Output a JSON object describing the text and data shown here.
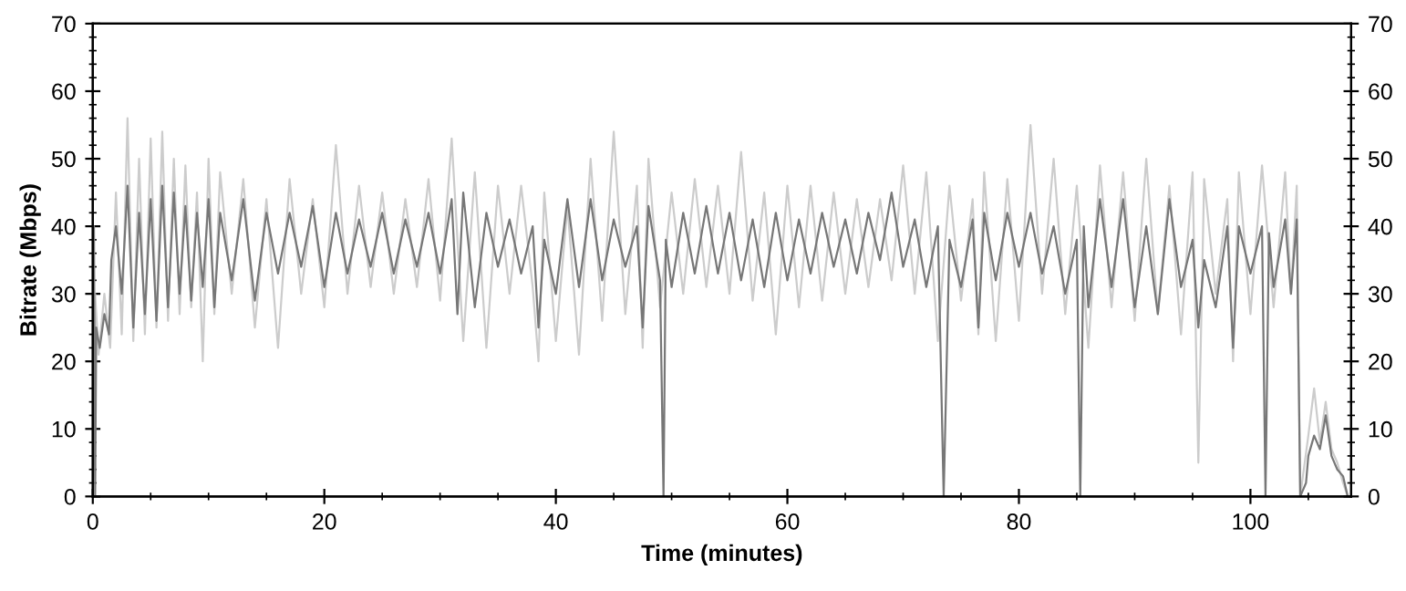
{
  "chart_data": {
    "type": "line",
    "xlabel": "Time (minutes)",
    "ylabel": "Bitrate (Mbps)",
    "xlim": [
      0,
      108.7
    ],
    "ylim": [
      0,
      70
    ],
    "xticks": [
      0,
      20,
      40,
      60,
      80,
      100
    ],
    "yticks": [
      0,
      10,
      20,
      30,
      40,
      50,
      60,
      70
    ],
    "y2lim": [
      0,
      70
    ],
    "y2ticks": [
      0,
      10,
      20,
      30,
      40,
      50,
      60,
      70
    ],
    "grid": false,
    "legend": false,
    "series": [
      {
        "color": "#cccccc",
        "x": [
          0,
          0.2,
          0.5,
          1,
          1.5,
          2,
          2.5,
          3,
          3.5,
          4,
          4.5,
          5,
          5.5,
          6,
          6.5,
          7,
          7.5,
          8,
          8.5,
          9,
          9.5,
          10,
          10.5,
          11,
          12,
          13,
          14,
          15,
          16,
          17,
          18,
          19,
          20,
          21,
          22,
          23,
          24,
          25,
          26,
          27,
          28,
          29,
          30,
          31,
          32,
          33,
          34,
          35,
          36,
          37,
          38,
          38.5,
          39,
          40,
          41,
          42,
          43,
          44,
          45,
          46,
          47,
          47.5,
          48,
          49,
          50,
          51,
          52,
          53,
          54,
          55,
          56,
          57,
          58,
          59,
          60,
          61,
          62,
          63,
          64,
          65,
          66,
          67,
          68,
          69,
          70,
          71,
          72,
          73,
          74,
          75,
          76,
          76.5,
          77,
          78,
          79,
          80,
          81,
          82,
          83,
          84,
          85,
          86,
          87,
          88,
          89,
          90,
          91,
          92,
          93,
          94,
          95,
          95.5,
          96,
          97,
          98,
          98.5,
          99,
          100,
          101,
          102,
          103,
          103.5,
          104,
          104.3,
          105,
          105.5,
          106,
          106.5,
          107,
          107.5,
          108,
          108.4
        ],
        "values": [
          0,
          30,
          21,
          30,
          22,
          45,
          24,
          56,
          23,
          50,
          24,
          53,
          25,
          54,
          26,
          50,
          27,
          49,
          28,
          45,
          20,
          50,
          27,
          48,
          30,
          47,
          25,
          44,
          22,
          47,
          30,
          44,
          28,
          52,
          30,
          46,
          31,
          45,
          30,
          44,
          31,
          47,
          29,
          53,
          23,
          48,
          22,
          46,
          30,
          46,
          31,
          20,
          45,
          23,
          43,
          21,
          50,
          26,
          54,
          27,
          46,
          22,
          50,
          28,
          45,
          30,
          47,
          31,
          46,
          30,
          51,
          29,
          45,
          24,
          46,
          28,
          46,
          29,
          45,
          30,
          44,
          31,
          44,
          32,
          49,
          30,
          48,
          23,
          46,
          29,
          44,
          24,
          48,
          23,
          47,
          26,
          55,
          30,
          50,
          27,
          46,
          22,
          49,
          28,
          48,
          26,
          50,
          27,
          46,
          24,
          48,
          5,
          47,
          30,
          44,
          20,
          48,
          27,
          49,
          28,
          48,
          30,
          46,
          0,
          9,
          16,
          8,
          14,
          7,
          5,
          2,
          0
        ]
      },
      {
        "color": "#777777",
        "x": [
          0,
          0.1,
          0.2,
          0.3,
          0.6,
          1.0,
          1.4,
          1.6,
          2.0,
          2.5,
          3.0,
          3.5,
          4.0,
          4.5,
          5.0,
          5.5,
          6.0,
          6.5,
          7.0,
          7.5,
          8.0,
          8.5,
          9.0,
          9.5,
          10.0,
          10.5,
          11.0,
          12,
          13,
          14,
          15,
          16,
          17,
          18,
          19,
          20,
          21,
          22,
          23,
          24,
          25,
          26,
          27,
          28,
          29,
          30,
          31,
          31.5,
          32,
          33,
          34,
          35,
          36,
          37,
          38,
          38.5,
          39,
          40,
          41,
          42,
          43,
          44,
          45,
          46,
          47,
          47.5,
          48,
          49,
          49.3,
          49.5,
          50,
          51,
          52,
          53,
          54,
          55,
          56,
          57,
          58,
          59,
          60,
          61,
          62,
          63,
          64,
          65,
          66,
          67,
          68,
          69,
          70,
          71,
          72,
          73,
          73.5,
          74,
          75,
          76,
          76.5,
          77,
          78,
          79,
          80,
          81,
          82,
          83,
          84,
          85,
          85.3,
          85.6,
          86,
          87,
          88,
          89,
          90,
          91,
          92,
          93,
          94,
          95,
          95.5,
          96,
          97,
          98,
          98.5,
          99,
          100,
          101,
          101.3,
          101.6,
          102,
          103,
          103.5,
          104,
          104.3,
          104.8,
          105,
          105.5,
          106,
          106.5,
          107,
          107.5,
          108,
          108.4
        ],
        "values": [
          0,
          40,
          0,
          25,
          22,
          27,
          24,
          35,
          40,
          30,
          46,
          25,
          42,
          27,
          44,
          26,
          46,
          28,
          45,
          30,
          43,
          29,
          42,
          31,
          44,
          28,
          42,
          32,
          44,
          29,
          42,
          33,
          42,
          34,
          43,
          31,
          42,
          33,
          41,
          34,
          42,
          33,
          41,
          34,
          42,
          33,
          44,
          27,
          45,
          28,
          42,
          34,
          41,
          33,
          40,
          25,
          38,
          30,
          44,
          31,
          44,
          32,
          41,
          34,
          40,
          25,
          43,
          32,
          0,
          38,
          31,
          42,
          33,
          43,
          33,
          42,
          32,
          41,
          31,
          42,
          32,
          41,
          33,
          42,
          34,
          41,
          33,
          42,
          35,
          45,
          34,
          41,
          31,
          40,
          0,
          38,
          31,
          41,
          25,
          42,
          32,
          42,
          34,
          42,
          33,
          40,
          30,
          38,
          0,
          40,
          28,
          44,
          31,
          44,
          28,
          40,
          27,
          44,
          31,
          38,
          25,
          35,
          28,
          40,
          22,
          40,
          33,
          40,
          0,
          39,
          31,
          41,
          30,
          41,
          0,
          2,
          6,
          9,
          7,
          12,
          6,
          4,
          3,
          0
        ]
      }
    ]
  }
}
